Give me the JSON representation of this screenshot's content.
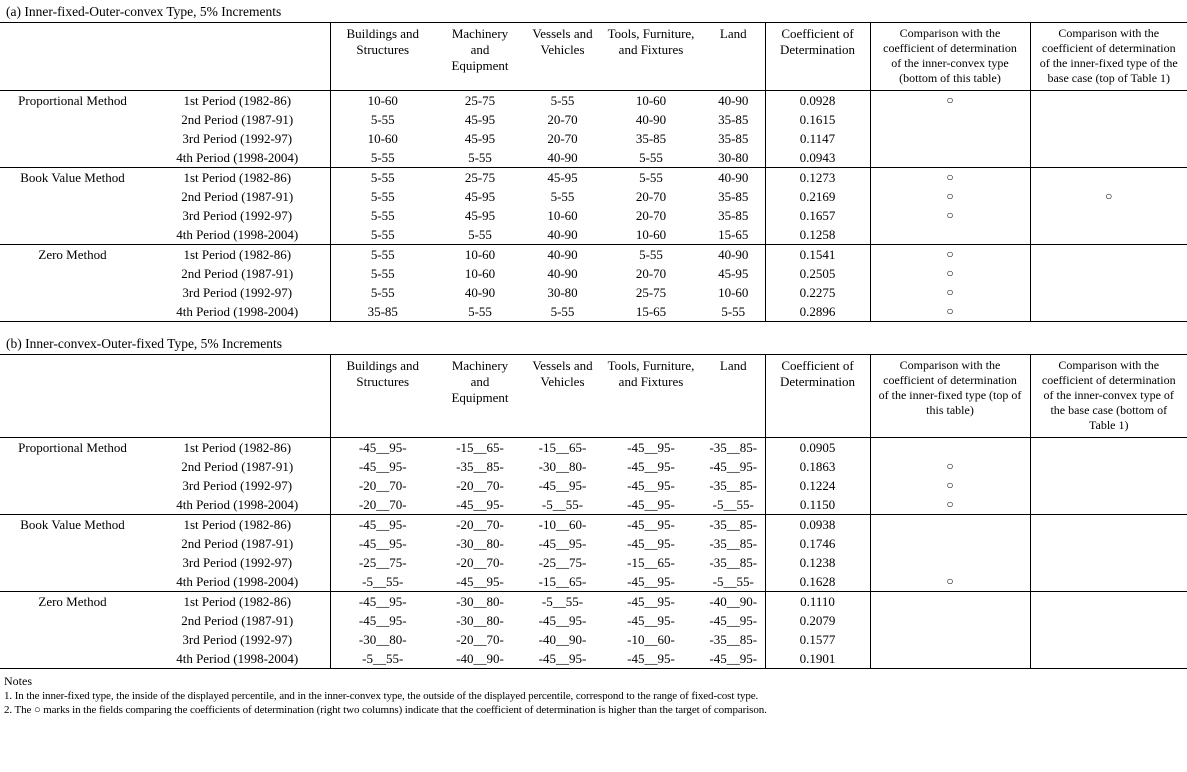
{
  "mark": "○",
  "tables": [
    {
      "title": "(a) Inner-fixed-Outer-convex Type, 5% Increments",
      "asset_columns": [
        "Buildings and Structures",
        "Machinery and Equipment",
        "Vessels and Vehicles",
        "Tools, Furniture, and Fixtures",
        "Land"
      ],
      "coef_column": "Coefficient of Determination",
      "cmp_columns": [
        "Comparison with the coefficient of determination of the inner-convex type (bottom of this table)",
        "Comparison with the coefficient of determination of the inner-fixed type of the base case (top of Table 1)"
      ],
      "groups": [
        {
          "method": "Proportional Method",
          "rows": [
            {
              "period": "1st Period (1982-86)",
              "values": [
                "10-60",
                "25-75",
                "5-55",
                "10-60",
                "40-90"
              ],
              "coef": "0.0928",
              "cmp": [
                true,
                false
              ]
            },
            {
              "period": "2nd Period (1987-91)",
              "values": [
                "5-55",
                "45-95",
                "20-70",
                "40-90",
                "35-85"
              ],
              "coef": "0.1615",
              "cmp": [
                false,
                false
              ]
            },
            {
              "period": "3rd Period (1992-97)",
              "values": [
                "10-60",
                "45-95",
                "20-70",
                "35-85",
                "35-85"
              ],
              "coef": "0.1147",
              "cmp": [
                false,
                false
              ]
            },
            {
              "period": "4th Period (1998-2004)",
              "values": [
                "5-55",
                "5-55",
                "40-90",
                "5-55",
                "30-80"
              ],
              "coef": "0.0943",
              "cmp": [
                false,
                false
              ]
            }
          ]
        },
        {
          "method": "Book Value Method",
          "rows": [
            {
              "period": "1st Period (1982-86)",
              "values": [
                "5-55",
                "25-75",
                "45-95",
                "5-55",
                "40-90"
              ],
              "coef": "0.1273",
              "cmp": [
                true,
                false
              ]
            },
            {
              "period": "2nd Period (1987-91)",
              "values": [
                "5-55",
                "45-95",
                "5-55",
                "20-70",
                "35-85"
              ],
              "coef": "0.2169",
              "cmp": [
                true,
                true
              ]
            },
            {
              "period": "3rd Period (1992-97)",
              "values": [
                "5-55",
                "45-95",
                "10-60",
                "20-70",
                "35-85"
              ],
              "coef": "0.1657",
              "cmp": [
                true,
                false
              ]
            },
            {
              "period": "4th Period (1998-2004)",
              "values": [
                "5-55",
                "5-55",
                "40-90",
                "10-60",
                "15-65"
              ],
              "coef": "0.1258",
              "cmp": [
                false,
                false
              ]
            }
          ]
        },
        {
          "method": "Zero Method",
          "rows": [
            {
              "period": "1st Period (1982-86)",
              "values": [
                "5-55",
                "10-60",
                "40-90",
                "5-55",
                "40-90"
              ],
              "coef": "0.1541",
              "cmp": [
                true,
                false
              ]
            },
            {
              "period": "2nd Period (1987-91)",
              "values": [
                "5-55",
                "10-60",
                "40-90",
                "20-70",
                "45-95"
              ],
              "coef": "0.2505",
              "cmp": [
                true,
                false
              ]
            },
            {
              "period": "3rd Period (1992-97)",
              "values": [
                "5-55",
                "40-90",
                "30-80",
                "25-75",
                "10-60"
              ],
              "coef": "0.2275",
              "cmp": [
                true,
                false
              ]
            },
            {
              "period": "4th Period (1998-2004)",
              "values": [
                "35-85",
                "5-55",
                "5-55",
                "15-65",
                "5-55"
              ],
              "coef": "0.2896",
              "cmp": [
                true,
                false
              ]
            }
          ]
        }
      ]
    },
    {
      "title": "(b) Inner-convex-Outer-fixed Type, 5% Increments",
      "asset_columns": [
        "Buildings and Structures",
        "Machinery and Equipment",
        "Vessels and Vehicles",
        "Tools, Furniture, and Fixtures",
        "Land"
      ],
      "coef_column": "Coefficient of Determination",
      "cmp_columns": [
        "Comparison with the coefficient of determination of the inner-fixed type (top of this table)",
        "Comparison with the coefficient of determination of the inner-convex type of the base case (bottom of Table 1)"
      ],
      "groups": [
        {
          "method": "Proportional Method",
          "rows": [
            {
              "period": "1st Period (1982-86)",
              "values": [
                "-45__95-",
                "-15__65-",
                "-15__65-",
                "-45__95-",
                "-35__85-"
              ],
              "coef": "0.0905",
              "cmp": [
                false,
                false
              ]
            },
            {
              "period": "2nd Period (1987-91)",
              "values": [
                "-45__95-",
                "-35__85-",
                "-30__80-",
                "-45__95-",
                "-45__95-"
              ],
              "coef": "0.1863",
              "cmp": [
                true,
                false
              ]
            },
            {
              "period": "3rd Period (1992-97)",
              "values": [
                "-20__70-",
                "-20__70-",
                "-45__95-",
                "-45__95-",
                "-35__85-"
              ],
              "coef": "0.1224",
              "cmp": [
                true,
                false
              ]
            },
            {
              "period": "4th Period (1998-2004)",
              "values": [
                "-20__70-",
                "-45__95-",
                "-5__55-",
                "-45__95-",
                "-5__55-"
              ],
              "coef": "0.1150",
              "cmp": [
                true,
                false
              ]
            }
          ]
        },
        {
          "method": "Book Value Method",
          "rows": [
            {
              "period": "1st Period (1982-86)",
              "values": [
                "-45__95-",
                "-20__70-",
                "-10__60-",
                "-45__95-",
                "-35__85-"
              ],
              "coef": "0.0938",
              "cmp": [
                false,
                false
              ]
            },
            {
              "period": "2nd Period (1987-91)",
              "values": [
                "-45__95-",
                "-30__80-",
                "-45__95-",
                "-45__95-",
                "-35__85-"
              ],
              "coef": "0.1746",
              "cmp": [
                false,
                false
              ]
            },
            {
              "period": "3rd Period (1992-97)",
              "values": [
                "-25__75-",
                "-20__70-",
                "-25__75-",
                "-15__65-",
                "-35__85-"
              ],
              "coef": "0.1238",
              "cmp": [
                false,
                false
              ]
            },
            {
              "period": "4th Period (1998-2004)",
              "values": [
                "-5__55-",
                "-45__95-",
                "-15__65-",
                "-45__95-",
                "-5__55-"
              ],
              "coef": "0.1628",
              "cmp": [
                true,
                false
              ]
            }
          ]
        },
        {
          "method": "Zero Method",
          "rows": [
            {
              "period": "1st Period (1982-86)",
              "values": [
                "-45__95-",
                "-30__80-",
                "-5__55-",
                "-45__95-",
                "-40__90-"
              ],
              "coef": "0.1110",
              "cmp": [
                false,
                false
              ]
            },
            {
              "period": "2nd Period (1987-91)",
              "values": [
                "-45__95-",
                "-30__80-",
                "-45__95-",
                "-45__95-",
                "-45__95-"
              ],
              "coef": "0.2079",
              "cmp": [
                false,
                false
              ]
            },
            {
              "period": "3rd Period (1992-97)",
              "values": [
                "-30__80-",
                "-20__70-",
                "-40__90-",
                "-10__60-",
                "-35__85-"
              ],
              "coef": "0.1577",
              "cmp": [
                false,
                false
              ]
            },
            {
              "period": "4th Period (1998-2004)",
              "values": [
                "-5__55-",
                "-40__90-",
                "-45__95-",
                "-45__95-",
                "-45__95-"
              ],
              "coef": "0.1901",
              "cmp": [
                false,
                false
              ]
            }
          ]
        }
      ]
    }
  ],
  "notes": {
    "title": "Notes",
    "items": [
      "1. In the inner-fixed type, the inside of the displayed percentile, and in the inner-convex type, the outside of the displayed percentile, correspond to the range of fixed-cost type.",
      "2. The ○ marks in the fields comparing the coefficients of determination (right two columns) indicate that the coefficient of determination is higher than the target of comparison."
    ]
  }
}
